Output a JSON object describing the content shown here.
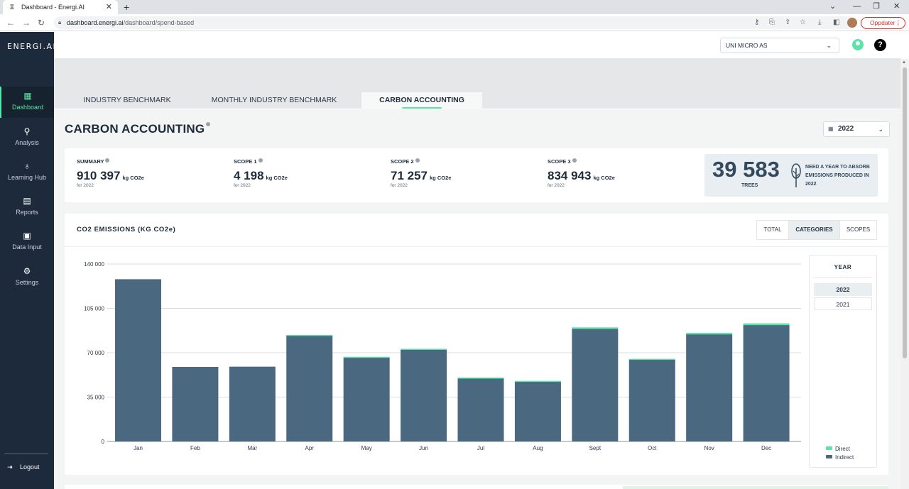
{
  "browser": {
    "tab_title": "Dashboard - Energi.AI",
    "tab_favicon": "Ξ",
    "url_host": "dashboard.energi.ai",
    "url_path": "/dashboard/spend-based",
    "update_label": "Oppdater"
  },
  "sidebar": {
    "logo": "ENERGI.AI",
    "items": [
      {
        "label": "Dashboard",
        "icon": "dashboard-icon",
        "glyph": "▦"
      },
      {
        "label": "Analysis",
        "icon": "analysis-icon",
        "glyph": "⚲"
      },
      {
        "label": "Learning Hub",
        "icon": "lightbulb-icon",
        "glyph": "♁"
      },
      {
        "label": "Reports",
        "icon": "reports-icon",
        "glyph": "▤"
      },
      {
        "label": "Data Input",
        "icon": "data-input-icon",
        "glyph": "▣"
      },
      {
        "label": "Settings",
        "icon": "gear-icon",
        "glyph": "⚙"
      }
    ],
    "logout": "Logout"
  },
  "header": {
    "company": "UNI MICRO AS",
    "help": "?"
  },
  "tabs": [
    {
      "label": "INDUSTRY BENCHMARK"
    },
    {
      "label": "MONTHLY INDUSTRY BENCHMARK"
    },
    {
      "label": "CARBON ACCOUNTING"
    }
  ],
  "page": {
    "title": "CARBON ACCOUNTING",
    "year": "2022"
  },
  "summary": {
    "stats": [
      {
        "label": "SUMMARY",
        "value": "910 397",
        "unit": "kg CO2e",
        "sub": "for 2022"
      },
      {
        "label": "SCOPE 1",
        "value": "4 198",
        "unit": "kg CO2e",
        "sub": "for 2022"
      },
      {
        "label": "SCOPE 2",
        "value": "71 257",
        "unit": "kg CO2e",
        "sub": "for 2022"
      },
      {
        "label": "SCOPE 3",
        "value": "834 943",
        "unit": "kg CO2e",
        "sub": "for 2022"
      }
    ],
    "trees": {
      "value": "39 583",
      "label": "TREES",
      "description": "NEED A YEAR TO ABSORB EMISSIONS PRODUCED IN 2022"
    }
  },
  "chart": {
    "title": "CO2 EMISSIONS (KG CO2e)",
    "toggles": [
      "TOTAL",
      "CATEGORIES",
      "SCOPES"
    ],
    "active_toggle": "CATEGORIES",
    "year_panel": {
      "title": "YEAR",
      "options": [
        "2022",
        "2021"
      ],
      "selected": "2022"
    },
    "legend": [
      {
        "name": "Direct",
        "color": "#5de3a8"
      },
      {
        "name": "Indirect",
        "color": "#4a6880"
      }
    ]
  },
  "chart_data": {
    "type": "bar",
    "stacked": true,
    "categories": [
      "Jan",
      "Feb",
      "Mar",
      "Apr",
      "May",
      "Jun",
      "Jul",
      "Aug",
      "Sept",
      "Oct",
      "Nov",
      "Dec"
    ],
    "series": [
      {
        "name": "Indirect",
        "values": [
          128000,
          58800,
          59000,
          83500,
          66500,
          72500,
          50000,
          47500,
          88800,
          64800,
          84500,
          91800
        ]
      },
      {
        "name": "Direct",
        "values": [
          0,
          0,
          0,
          600,
          300,
          600,
          400,
          300,
          1200,
          400,
          1200,
          1400
        ]
      }
    ],
    "yticks": [
      "140 000",
      "105 000",
      "70 000",
      "35 000",
      "0"
    ],
    "ylim": [
      0,
      140000
    ],
    "colors": {
      "Indirect": "#4a6880",
      "Direct": "#5de3a8"
    },
    "grid": true,
    "legend_position": "bottom-right"
  }
}
